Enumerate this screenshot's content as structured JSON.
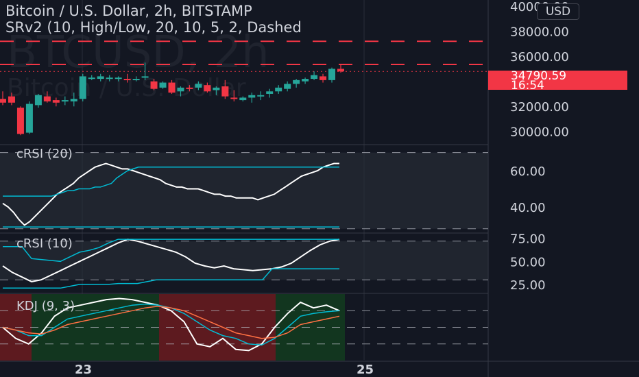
{
  "header": {
    "symbol_line": "Bitcoin / U.S. Dollar, 2h, BITSTAMP",
    "indicator_line": "SRv2 (10, High/Low, 20, 10, 5, 2, Dashed",
    "watermark_symbol": "BTCUSD, 2h",
    "watermark_name": "Bitcoin / U.S. Dollar",
    "currency": "USD"
  },
  "last_price": {
    "value": "34790.59",
    "countdown": "16:54"
  },
  "colors": {
    "up": "#26a69a",
    "down": "#f23645",
    "background": "#131722",
    "line_white": "#ffffff",
    "line_cyan": "#00bcd4",
    "line_orange": "#ff7043"
  },
  "chart_data": [
    {
      "type": "candlestick",
      "title": "Bitcoin / U.S. Dollar, 2h, BITSTAMP",
      "ylim": [
        29000,
        40500
      ],
      "y_ticks": [
        "40000.00",
        "38000.00",
        "36000.00",
        "32000.00",
        "30000.00"
      ],
      "x_ticks": [
        "23",
        "25"
      ],
      "resistance_levels": [
        37200,
        35350
      ],
      "candles": [
        {
          "o": 32600,
          "h": 33200,
          "l": 32100,
          "c": 32300
        },
        {
          "o": 32800,
          "h": 33100,
          "l": 32100,
          "c": 32300
        },
        {
          "o": 31900,
          "h": 32000,
          "l": 29700,
          "c": 29800
        },
        {
          "o": 29900,
          "h": 32400,
          "l": 29800,
          "c": 32200
        },
        {
          "o": 32100,
          "h": 33000,
          "l": 31900,
          "c": 32900
        },
        {
          "o": 32800,
          "h": 33200,
          "l": 32300,
          "c": 32400
        },
        {
          "o": 32500,
          "h": 32700,
          "l": 32000,
          "c": 32300
        },
        {
          "o": 32400,
          "h": 32800,
          "l": 32100,
          "c": 32500
        },
        {
          "o": 32400,
          "h": 33100,
          "l": 32000,
          "c": 32600
        },
        {
          "o": 32600,
          "h": 34600,
          "l": 32400,
          "c": 34400
        },
        {
          "o": 34300,
          "h": 34500,
          "l": 34100,
          "c": 34300
        },
        {
          "o": 34200,
          "h": 34600,
          "l": 34000,
          "c": 34400
        },
        {
          "o": 34200,
          "h": 34500,
          "l": 34000,
          "c": 34300
        },
        {
          "o": 34200,
          "h": 34400,
          "l": 34000,
          "c": 34300
        },
        {
          "o": 34200,
          "h": 34600,
          "l": 33900,
          "c": 34100
        },
        {
          "o": 34200,
          "h": 34400,
          "l": 34000,
          "c": 34200
        },
        {
          "o": 34300,
          "h": 35500,
          "l": 34100,
          "c": 34400
        },
        {
          "o": 34000,
          "h": 34200,
          "l": 33300,
          "c": 33400
        },
        {
          "o": 33500,
          "h": 34000,
          "l": 33400,
          "c": 33900
        },
        {
          "o": 33900,
          "h": 34100,
          "l": 33000,
          "c": 33100
        },
        {
          "o": 33200,
          "h": 33600,
          "l": 32800,
          "c": 33500
        },
        {
          "o": 33500,
          "h": 33700,
          "l": 33200,
          "c": 33400
        },
        {
          "o": 33500,
          "h": 34000,
          "l": 33300,
          "c": 33800
        },
        {
          "o": 33700,
          "h": 33900,
          "l": 33100,
          "c": 33200
        },
        {
          "o": 33300,
          "h": 33600,
          "l": 32900,
          "c": 33500
        },
        {
          "o": 33600,
          "h": 34100,
          "l": 32600,
          "c": 32800
        },
        {
          "o": 32700,
          "h": 33300,
          "l": 32400,
          "c": 32600
        },
        {
          "o": 32500,
          "h": 32800,
          "l": 32400,
          "c": 32700
        },
        {
          "o": 32700,
          "h": 33100,
          "l": 32300,
          "c": 32900
        },
        {
          "o": 32800,
          "h": 33200,
          "l": 32500,
          "c": 32900
        },
        {
          "o": 33000,
          "h": 33400,
          "l": 32700,
          "c": 33200
        },
        {
          "o": 33200,
          "h": 33700,
          "l": 33000,
          "c": 33500
        },
        {
          "o": 33400,
          "h": 34000,
          "l": 33200,
          "c": 33800
        },
        {
          "o": 33800,
          "h": 34200,
          "l": 33500,
          "c": 34100
        },
        {
          "o": 34000,
          "h": 34300,
          "l": 33800,
          "c": 34200
        },
        {
          "o": 34200,
          "h": 34800,
          "l": 34100,
          "c": 34500
        },
        {
          "o": 34400,
          "h": 34600,
          "l": 33900,
          "c": 34100
        },
        {
          "o": 34100,
          "h": 35100,
          "l": 33900,
          "c": 35000
        },
        {
          "o": 35000,
          "h": 35400,
          "l": 34700,
          "c": 34790.59
        }
      ]
    },
    {
      "type": "line",
      "title": "cRSI (20)",
      "ylim": [
        26,
        74
      ],
      "y_ticks": [
        "60.00",
        "40.00"
      ],
      "levels": [
        70,
        28
      ],
      "series": [
        {
          "values": [
            42,
            40,
            37,
            33,
            30,
            32,
            35,
            38,
            41,
            44,
            47,
            49,
            51,
            53,
            56,
            58,
            60,
            62,
            63,
            64,
            63,
            62,
            61,
            61,
            60,
            59,
            58,
            57,
            56,
            55,
            53,
            52,
            51,
            51,
            50,
            50,
            50,
            49,
            48,
            47,
            47,
            46,
            46,
            45,
            45,
            45,
            45,
            44,
            45,
            46,
            47,
            49,
            51,
            53,
            55,
            57,
            58,
            59,
            60,
            62,
            63,
            64,
            64
          ]
        },
        {
          "values": [
            46,
            46,
            46,
            46,
            46,
            46,
            46,
            46,
            46,
            46,
            47,
            48,
            49,
            49,
            50,
            50,
            50,
            51,
            51,
            52,
            53,
            56,
            58,
            60,
            61,
            62,
            62,
            62,
            62,
            62,
            62,
            62,
            62,
            62,
            62,
            62,
            62,
            62,
            62,
            62,
            62,
            62,
            62,
            62,
            62,
            62,
            62,
            62,
            62,
            62,
            62,
            62,
            62,
            62,
            62,
            62,
            62,
            62,
            62,
            62,
            62,
            62,
            62
          ]
        },
        {
          "values": [
            29,
            29,
            29,
            29,
            29,
            29,
            29,
            29,
            29,
            29,
            29,
            29,
            29,
            29,
            29,
            29,
            29,
            29,
            29,
            29,
            29,
            29,
            29,
            29,
            29,
            29,
            29,
            29,
            29,
            29,
            29,
            29,
            29,
            29,
            29,
            29,
            29,
            29,
            29,
            29,
            29,
            29,
            29,
            29,
            29,
            29,
            29,
            29,
            29,
            29,
            29,
            29,
            29,
            29,
            29,
            29,
            29,
            29,
            29,
            29,
            29,
            29,
            29
          ]
        }
      ]
    },
    {
      "type": "line",
      "title": "cRSI (10)",
      "ylim": [
        16,
        80
      ],
      "y_ticks": [
        "75.00",
        "50.00",
        "25.00"
      ],
      "levels": [
        72,
        30
      ],
      "series": [
        {
          "values": [
            45,
            38,
            33,
            28,
            30,
            35,
            40,
            45,
            50,
            55,
            60,
            65,
            70,
            74,
            72,
            69,
            66,
            63,
            60,
            55,
            48,
            45,
            43,
            45,
            42,
            41,
            40,
            41,
            42,
            44,
            48,
            55,
            62,
            68,
            72,
            74
          ]
        },
        {
          "values": [
            66,
            66,
            66,
            53,
            52,
            51,
            50,
            55,
            60,
            62,
            65,
            70,
            74,
            74,
            74,
            74,
            74,
            74,
            74,
            74,
            74,
            74,
            74,
            74,
            74,
            74,
            74,
            74,
            74,
            74,
            74,
            74,
            74,
            74,
            74,
            74
          ]
        },
        {
          "values": [
            21,
            21,
            21,
            21,
            21,
            21,
            21,
            23,
            25,
            25,
            25,
            25,
            26,
            26,
            26,
            28,
            30,
            30,
            30,
            30,
            30,
            30,
            30,
            30,
            30,
            30,
            30,
            30,
            42,
            42,
            42,
            42,
            42,
            42,
            42,
            42
          ]
        }
      ]
    },
    {
      "type": "line",
      "title": "KDJ (9, 3)",
      "ylim": [
        -10,
        110
      ],
      "levels": [
        80,
        50,
        20
      ],
      "series": [
        {
          "values": [
            50,
            30,
            20,
            40,
            70,
            85,
            90,
            95,
            100,
            102,
            100,
            95,
            90,
            80,
            60,
            20,
            15,
            30,
            10,
            8,
            20,
            50,
            75,
            95,
            85,
            90,
            80
          ]
        },
        {
          "values": [
            50,
            45,
            35,
            35,
            50,
            65,
            70,
            75,
            80,
            85,
            90,
            92,
            90,
            85,
            75,
            60,
            45,
            35,
            30,
            20,
            18,
            30,
            50,
            70,
            75,
            78,
            80
          ]
        },
        {
          "values": [
            50,
            45,
            40,
            38,
            45,
            55,
            60,
            65,
            70,
            75,
            80,
            85,
            88,
            85,
            80,
            70,
            60,
            50,
            40,
            35,
            30,
            32,
            40,
            55,
            60,
            65,
            70
          ]
        }
      ],
      "background_regimes": [
        "down",
        "up",
        "down",
        "up"
      ]
    }
  ]
}
